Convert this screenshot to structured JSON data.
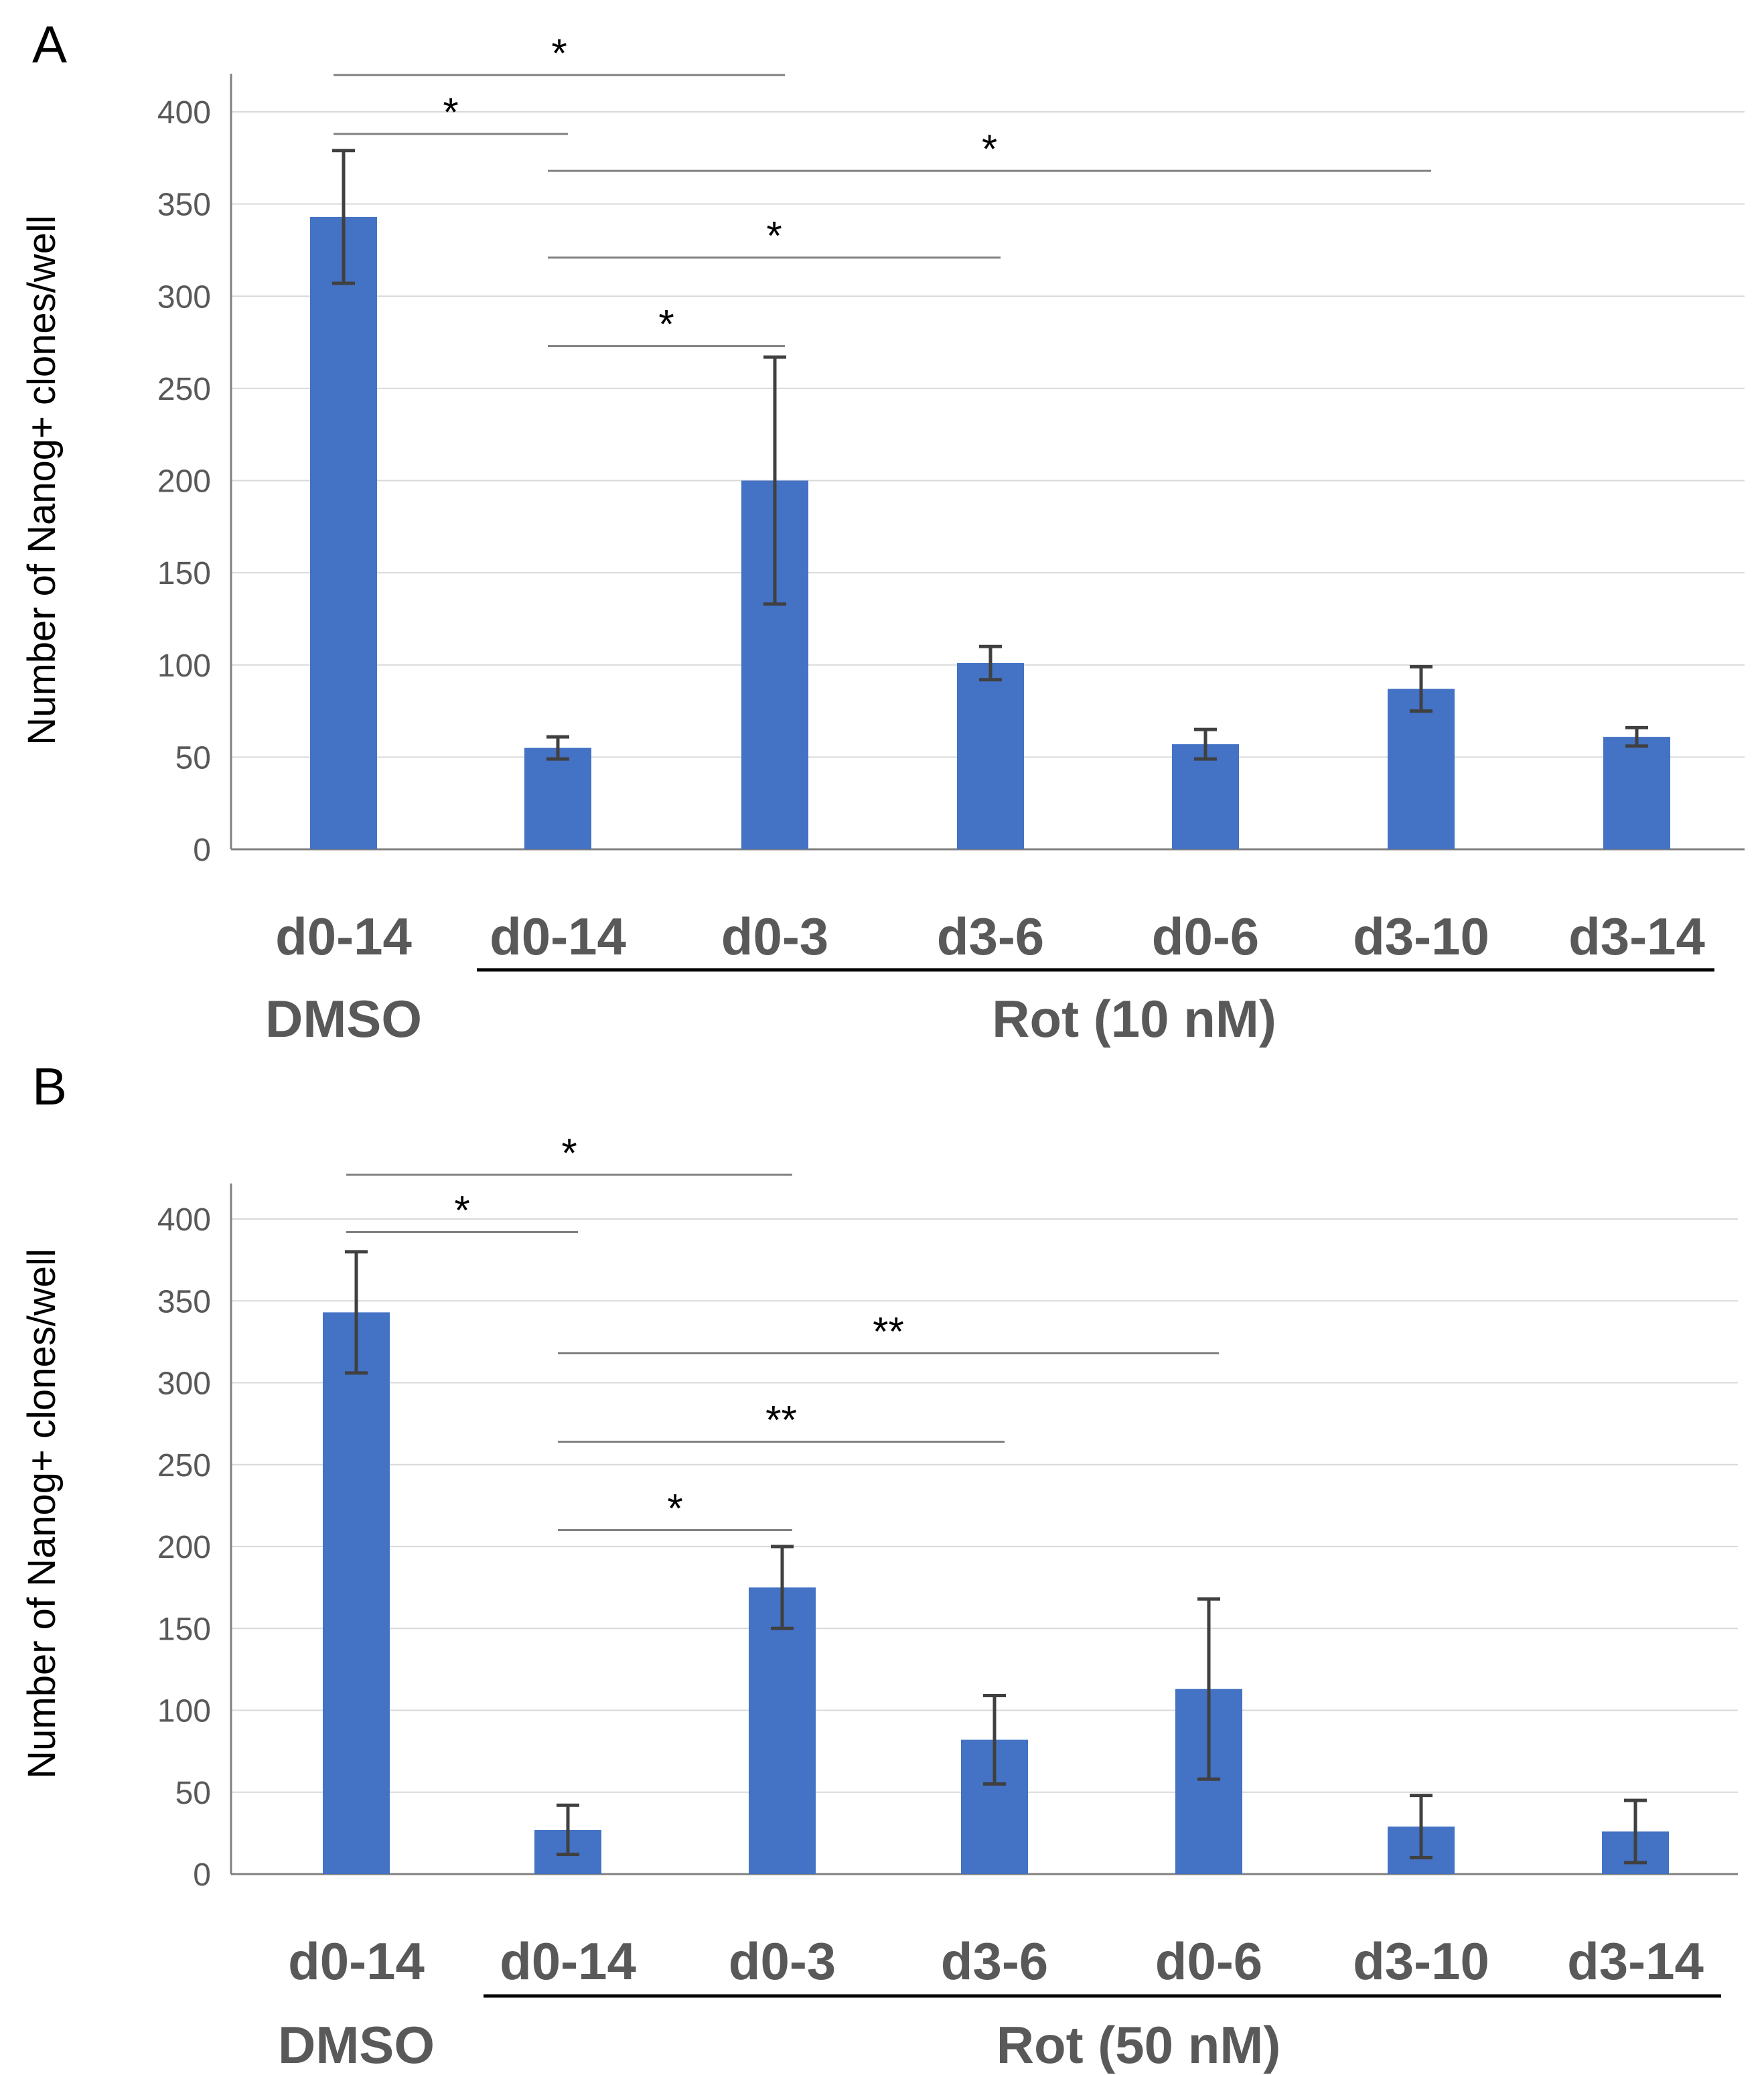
{
  "colors": {
    "bar": "#4472C4",
    "error": "#404040",
    "grid": "#D9D9D9",
    "axis": "#808080",
    "sig": "#808080"
  },
  "chart_data": [
    {
      "type": "bar",
      "panel_label": "A",
      "ylabel": "Number of Nanog+ clones/well",
      "ylim": [
        0,
        400
      ],
      "yticks": [
        0,
        50,
        100,
        150,
        200,
        250,
        300,
        350,
        400
      ],
      "grid": true,
      "categories": [
        "d0-14",
        "d0-14",
        "d0-3",
        "d3-6",
        "d0-6",
        "d3-10",
        "d3-14"
      ],
      "values": [
        343,
        55,
        200,
        101,
        57,
        87,
        61
      ],
      "errors": [
        36,
        6,
        67,
        9,
        8,
        12,
        5
      ],
      "groups": [
        {
          "label": "DMSO",
          "start": 0,
          "end": 0,
          "underline": false
        },
        {
          "label": "Rot (10 nM)",
          "start": 1,
          "end": 6,
          "underline": true
        }
      ],
      "significance": [
        {
          "from": 0,
          "to": 2,
          "y": 420,
          "label": "*"
        },
        {
          "from": 0,
          "to": 1,
          "y": 388,
          "label": "*"
        },
        {
          "from": 1,
          "to": 5,
          "y": 368,
          "label": "*"
        },
        {
          "from": 1,
          "to": 3,
          "y": 321,
          "label": "*"
        },
        {
          "from": 1,
          "to": 2,
          "y": 273,
          "label": "*"
        }
      ]
    },
    {
      "type": "bar",
      "panel_label": "B",
      "ylabel": "Number of Nanog+ clones/well",
      "ylim": [
        0,
        400
      ],
      "yticks": [
        0,
        50,
        100,
        150,
        200,
        250,
        300,
        350,
        400
      ],
      "grid": true,
      "categories": [
        "d0-14",
        "d0-14",
        "d0-3",
        "d3-6",
        "d0-6",
        "d3-10",
        "d3-14"
      ],
      "values": [
        343,
        27,
        175,
        82,
        113,
        29,
        26
      ],
      "errors": [
        37,
        15,
        25,
        27,
        55,
        19,
        19
      ],
      "groups": [
        {
          "label": "DMSO",
          "start": 0,
          "end": 0,
          "underline": false
        },
        {
          "label": "Rot (50 nM)",
          "start": 1,
          "end": 6,
          "underline": true
        }
      ],
      "significance": [
        {
          "from": 0,
          "to": 2,
          "y": 427,
          "label": "*"
        },
        {
          "from": 0,
          "to": 1,
          "y": 392,
          "label": "*"
        },
        {
          "from": 1,
          "to": 4,
          "y": 318,
          "label": "**"
        },
        {
          "from": 1,
          "to": 3,
          "y": 264,
          "label": "**"
        },
        {
          "from": 1,
          "to": 2,
          "y": 210,
          "label": "*"
        }
      ]
    }
  ]
}
